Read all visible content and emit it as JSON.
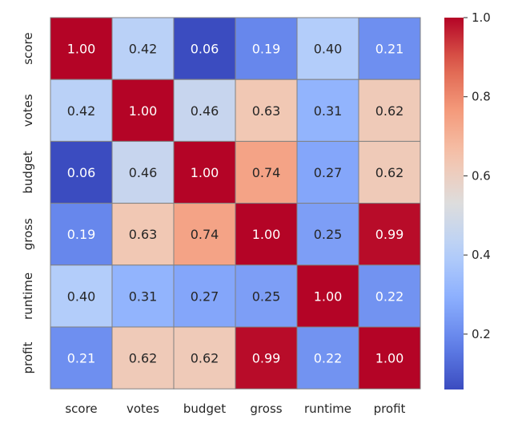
{
  "chart_data": {
    "type": "heatmap",
    "title": "",
    "xlabel": "",
    "ylabel": "",
    "x_categories": [
      "score",
      "votes",
      "budget",
      "gross",
      "runtime",
      "profit"
    ],
    "y_categories": [
      "score",
      "votes",
      "budget",
      "gross",
      "runtime",
      "profit"
    ],
    "matrix": [
      [
        1.0,
        0.42,
        0.06,
        0.19,
        0.4,
        0.21
      ],
      [
        0.42,
        1.0,
        0.46,
        0.63,
        0.31,
        0.62
      ],
      [
        0.06,
        0.46,
        1.0,
        0.74,
        0.27,
        0.62
      ],
      [
        0.19,
        0.63,
        0.74,
        1.0,
        0.25,
        0.99
      ],
      [
        0.4,
        0.31,
        0.27,
        0.25,
        1.0,
        0.22
      ],
      [
        0.21,
        0.62,
        0.62,
        0.99,
        0.22,
        1.0
      ]
    ],
    "value_format": "2 decimals",
    "annotations": true,
    "colormap": "coolwarm",
    "value_range": [
      0.06,
      1.0
    ],
    "colorbar": {
      "ticks": [
        0.2,
        0.4,
        0.6,
        0.8,
        1.0
      ],
      "tick_labels": [
        "0.2",
        "0.4",
        "0.6",
        "0.8",
        "1.0"
      ],
      "placement": "right"
    },
    "grid": false,
    "cell_border_color": "#808080",
    "low_color": "#3b4cc0",
    "mid_color": "#dddddd",
    "high_color": "#b40426"
  }
}
